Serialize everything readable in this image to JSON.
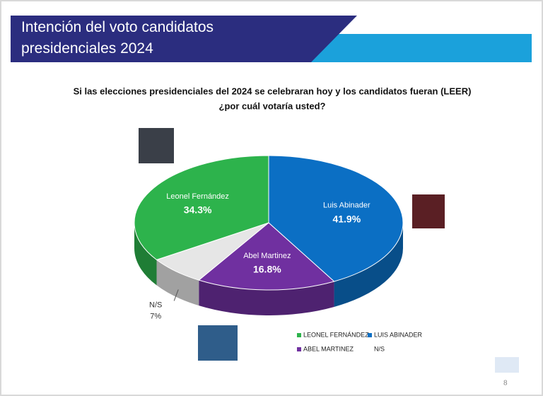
{
  "header": {
    "title": "Intención del voto candidatos presidenciales 2024"
  },
  "chart_data": {
    "type": "pie",
    "title": "Si las elecciones presidenciales del 2024  se celebraran hoy y los candidatos fueran (LEER)",
    "subtitle": "¿por cuál votaría usted?",
    "categories": [
      "Luis Abinader",
      "Abel Martinez",
      "N/S",
      "Leonel Fernández"
    ],
    "values": [
      41.9,
      16.8,
      7,
      34.3
    ],
    "value_labels": [
      "41.9%",
      "16.8%",
      "7%",
      "34.3%"
    ],
    "colors": [
      "#0b6fc4",
      "#7030a0",
      "#e6e6e6",
      "#2db34c"
    ],
    "legend": [
      {
        "name": "LEONEL FERNÁNDEZ",
        "color": "#2db34c"
      },
      {
        "name": "LUIS ABINADER",
        "color": "#0b6fc4"
      },
      {
        "name": "ABEL  MARTINEZ",
        "color": "#7030a0"
      },
      {
        "name": "N/S",
        "color": "#ffffff"
      }
    ]
  },
  "footer": {
    "page": "8"
  }
}
